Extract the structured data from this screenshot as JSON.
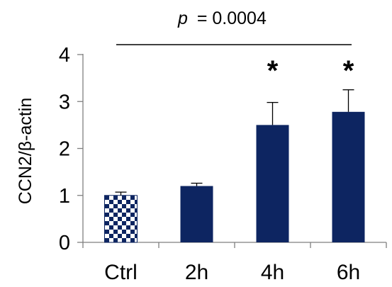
{
  "chart_data": {
    "type": "bar",
    "categories": [
      "Ctrl",
      "2h",
      "4h",
      "6h"
    ],
    "values": [
      1.0,
      1.2,
      2.5,
      2.78
    ],
    "errors": [
      0.07,
      0.06,
      0.48,
      0.47
    ],
    "ylabel": "CCN2/β-actin",
    "xlabel": "",
    "ylim": [
      0,
      4
    ],
    "yticks": [
      0,
      1,
      2,
      3,
      4
    ],
    "significance": [
      "",
      "",
      "*",
      "*"
    ],
    "annotation": {
      "p_label": "p",
      "p_value": "= 0.0004"
    },
    "colors": {
      "bar": "#0d2561",
      "ctrl_pattern": "#0d2561",
      "ctrl_pattern_bg": "#ffffff"
    }
  }
}
